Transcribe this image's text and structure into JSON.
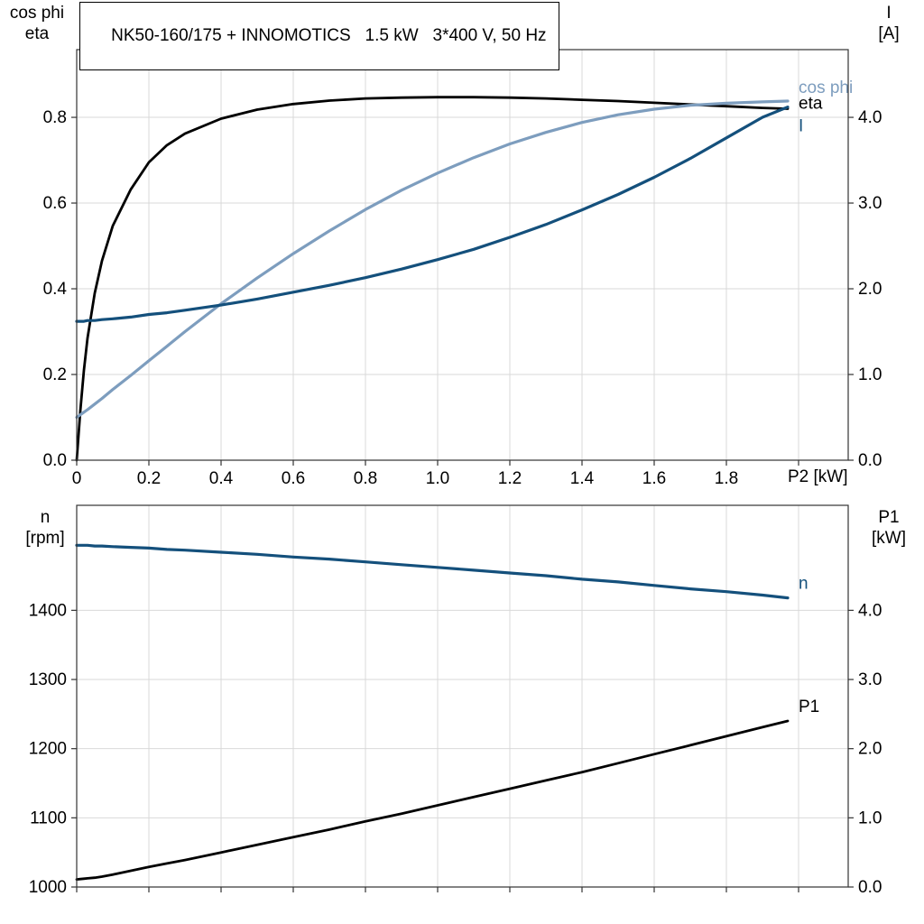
{
  "title": "NK50-160/175 + INNOMOTICS   1.5 kW   3*400 V, 50 Hz",
  "colors": {
    "black": "#000000",
    "light_blue": "#7d9dbe",
    "dark_blue": "#14507c",
    "grid": "#d9d9d9",
    "frame": "#333333"
  },
  "top_chart": {
    "left_axis_title": [
      "cos phi",
      "eta"
    ],
    "right_axis_title": [
      "I",
      "[A]"
    ],
    "x_axis_title": "P2 [kW]"
  },
  "bottom_chart": {
    "left_axis_title": [
      "n",
      "[rpm]"
    ],
    "right_axis_title": [
      "P1",
      "[kW]"
    ]
  },
  "chart_data": [
    {
      "type": "line",
      "title": "NK50-160/175 + INNOMOTICS   1.5 kW   3*400 V, 50 Hz",
      "xlabel": "P2 [kW]",
      "ylabel_left": "cos phi / eta",
      "ylabel_right": "I [A]",
      "grid": true,
      "legend_position": "end-of-curve labels",
      "xlim": [
        0,
        2.1375
      ],
      "ylim_left": [
        0,
        0.958
      ],
      "ylim_right": [
        0,
        4.79
      ],
      "xticks": {
        "values": [
          0,
          0.2,
          0.4,
          0.6,
          0.8,
          1.0,
          1.2,
          1.4,
          1.6,
          1.8,
          2.0
        ],
        "labels": [
          "0",
          "0.2",
          "0.4",
          "0.6",
          "0.8",
          "1.0",
          "1.2",
          "1.4",
          "1.6",
          "1.8",
          ""
        ]
      },
      "yticks_left": {
        "values": [
          0,
          0.2,
          0.4,
          0.6,
          0.8
        ],
        "labels": [
          "0.0",
          "0.2",
          "0.4",
          "0.6",
          "0.8"
        ]
      },
      "yticks_right": {
        "values": [
          0,
          1,
          2,
          3,
          4
        ],
        "labels": [
          "0.0",
          "1.0",
          "2.0",
          "3.0",
          "4.0"
        ]
      },
      "x": [
        0,
        0.01,
        0.02,
        0.03,
        0.05,
        0.07,
        0.1,
        0.15,
        0.2,
        0.25,
        0.3,
        0.4,
        0.5,
        0.6,
        0.7,
        0.8,
        0.9,
        1.0,
        1.1,
        1.2,
        1.3,
        1.4,
        1.5,
        1.6,
        1.7,
        1.8,
        1.9,
        1.97
      ],
      "series": [
        {
          "name": "eta",
          "axis": "left",
          "color_key": "black",
          "stroke_width": 2.8,
          "end_label": "eta",
          "end_label_dy": -5,
          "values": [
            0,
            0.115,
            0.21,
            0.285,
            0.39,
            0.465,
            0.547,
            0.632,
            0.695,
            0.735,
            0.762,
            0.797,
            0.818,
            0.831,
            0.839,
            0.844,
            0.846,
            0.847,
            0.847,
            0.846,
            0.844,
            0.841,
            0.838,
            0.834,
            0.83,
            0.826,
            0.822,
            0.82
          ]
        },
        {
          "name": "cos-phi",
          "axis": "left",
          "color_key": "light_blue",
          "stroke_width": 3.2,
          "end_label": "cos phi",
          "end_label_dy": -14,
          "values": [
            0.1,
            0.106,
            0.112,
            0.118,
            0.131,
            0.144,
            0.165,
            0.198,
            0.232,
            0.266,
            0.3,
            0.365,
            0.425,
            0.482,
            0.535,
            0.585,
            0.63,
            0.67,
            0.706,
            0.738,
            0.765,
            0.788,
            0.806,
            0.819,
            0.828,
            0.833,
            0.836,
            0.838
          ]
        },
        {
          "name": "current",
          "axis": "right",
          "color_key": "dark_blue",
          "stroke_width": 3.2,
          "end_label": "I",
          "end_label_dy": 22,
          "values": [
            1.62,
            1.62,
            1.62,
            1.63,
            1.63,
            1.64,
            1.65,
            1.67,
            1.7,
            1.72,
            1.75,
            1.81,
            1.88,
            1.96,
            2.04,
            2.13,
            2.23,
            2.34,
            2.46,
            2.6,
            2.75,
            2.92,
            3.1,
            3.3,
            3.52,
            3.76,
            4.0,
            4.12
          ]
        }
      ]
    },
    {
      "type": "line",
      "title": "",
      "xlabel": "P2 [kW]",
      "ylabel_left": "n [rpm]",
      "ylabel_right": "P1 [kW]",
      "grid": true,
      "legend_position": "end-of-curve labels",
      "xlim": [
        0,
        2.1375
      ],
      "ylim_left": [
        1000,
        1551.8
      ],
      "ylim_right": [
        0,
        5.518
      ],
      "xticks": {
        "values": [
          0,
          0.2,
          0.4,
          0.6,
          0.8,
          1.0,
          1.2,
          1.4,
          1.6,
          1.8,
          2.0
        ],
        "labels": [
          "",
          "",
          "",
          "",
          "",
          "",
          "",
          "",
          "",
          "",
          ""
        ]
      },
      "yticks_left": {
        "values": [
          1000,
          1100,
          1200,
          1300,
          1400
        ],
        "labels": [
          "1000",
          "1100",
          "1200",
          "1300",
          "1400"
        ]
      },
      "yticks_right": {
        "values": [
          0,
          1,
          2,
          3,
          4
        ],
        "labels": [
          "0.0",
          "1.0",
          "2.0",
          "3.0",
          "4.0"
        ]
      },
      "x": [
        0,
        0.01,
        0.02,
        0.03,
        0.05,
        0.07,
        0.1,
        0.15,
        0.2,
        0.25,
        0.3,
        0.4,
        0.5,
        0.6,
        0.7,
        0.8,
        0.9,
        1.0,
        1.1,
        1.2,
        1.3,
        1.4,
        1.5,
        1.6,
        1.7,
        1.8,
        1.9,
        1.97
      ],
      "series": [
        {
          "name": "speed",
          "axis": "left",
          "color_key": "dark_blue",
          "stroke_width": 3.2,
          "end_label": "n",
          "end_label_dy": -15,
          "values": [
            1494,
            1494,
            1494,
            1494,
            1493,
            1493,
            1492,
            1491,
            1490,
            1488,
            1487,
            1484,
            1481,
            1477,
            1474,
            1470,
            1466,
            1462,
            1458,
            1454,
            1450,
            1445,
            1441,
            1436,
            1431,
            1427,
            1422,
            1418
          ]
        },
        {
          "name": "p1",
          "axis": "right",
          "color_key": "black",
          "stroke_width": 2.8,
          "end_label": "P1",
          "end_label_dy": -15,
          "values": [
            0.11,
            0.115,
            0.12,
            0.125,
            0.135,
            0.15,
            0.18,
            0.235,
            0.29,
            0.34,
            0.39,
            0.5,
            0.61,
            0.72,
            0.83,
            0.95,
            1.06,
            1.18,
            1.3,
            1.42,
            1.54,
            1.66,
            1.79,
            1.92,
            2.05,
            2.18,
            2.31,
            2.4
          ]
        }
      ]
    }
  ]
}
